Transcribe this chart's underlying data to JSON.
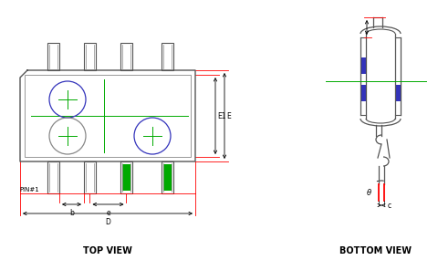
{
  "bg_color": "#ffffff",
  "gray": "#888888",
  "dark_gray": "#555555",
  "red": "#ff0000",
  "green": "#00aa00",
  "blue": "#3333bb",
  "title_fontsize": 7,
  "label_fontsize": 5.5,
  "top_view_label": "TOP VIEW",
  "bottom_view_label": "BOTTOM VIEW",
  "pin_label": "PIN#1",
  "dim_labels": [
    "b",
    "e",
    "D",
    "E1",
    "E",
    "c",
    "θ"
  ]
}
